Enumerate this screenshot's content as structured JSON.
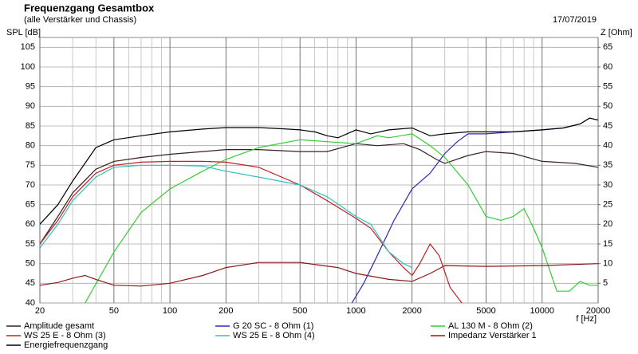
{
  "chart_data": {
    "type": "line",
    "title": "Frequenzgang Gesamtbox",
    "subtitle": "(alle Verstärker und Chassis)",
    "date": "17/07/2019",
    "ylabel": "SPL [dB]",
    "y2label": "Z [Ohm]",
    "xlabel": "f [Hz]",
    "xscale": "log",
    "grid": true,
    "xlim": [
      20,
      20000
    ],
    "xticks": [
      20,
      50,
      100,
      200,
      500,
      1000,
      2000,
      5000,
      10000,
      20000
    ],
    "xminor": [
      30,
      40,
      60,
      70,
      80,
      90,
      300,
      400,
      600,
      700,
      800,
      900,
      3000,
      4000,
      6000,
      7000,
      8000,
      9000
    ],
    "ylim": [
      40,
      107.5
    ],
    "yticks": [
      40,
      45,
      50,
      55,
      60,
      65,
      70,
      75,
      80,
      85,
      90,
      95,
      100,
      105
    ],
    "y2lim": [
      0,
      67.5
    ],
    "y2ticks": [
      5,
      10,
      15,
      20,
      25,
      30,
      35,
      40,
      45,
      50,
      55,
      60,
      65
    ],
    "series": [
      {
        "name": "Amplitude gesamt",
        "color": "#3a2020",
        "x": [
          20,
          25,
          30,
          40,
          50,
          70,
          100,
          150,
          200,
          300,
          500,
          700,
          1000,
          1300,
          1800,
          2200,
          2700,
          3000,
          4000,
          5000,
          7000,
          10000,
          15000,
          20000
        ],
        "values": [
          55,
          62,
          68,
          74,
          76,
          77,
          77.8,
          78.5,
          79,
          79,
          78.5,
          78.5,
          80.5,
          80,
          80.5,
          79,
          76.5,
          75.5,
          77.5,
          78.5,
          78,
          76,
          75.5,
          74.5
        ]
      },
      {
        "name": "G 20 SC - 8 Ohm (1)",
        "color": "#2b2bb0",
        "x": [
          950,
          1100,
          1300,
          1600,
          2000,
          2500,
          3000,
          3500,
          4000,
          5000,
          7000,
          10000,
          13000,
          16000,
          18000,
          20000
        ],
        "values": [
          40,
          45,
          52,
          61,
          69,
          73,
          78,
          81,
          83,
          83,
          83.5,
          84,
          84.5,
          85.5,
          87,
          86.5
        ]
      },
      {
        "name": "AL 130 M - 8 Ohm (2)",
        "color": "#33cc33",
        "x": [
          35,
          50,
          70,
          100,
          150,
          200,
          300,
          500,
          700,
          1000,
          1300,
          1500,
          2000,
          2500,
          3000,
          4000,
          5000,
          6000,
          7000,
          8000,
          9000,
          10000,
          12000,
          14000,
          16000,
          18000,
          20000
        ],
        "values": [
          40,
          53,
          63,
          69,
          73.5,
          76.5,
          79.5,
          81.5,
          81,
          80.5,
          82.5,
          82,
          83,
          80,
          77,
          70,
          62,
          61,
          62,
          64,
          59,
          54,
          43,
          43,
          45.5,
          44.5,
          44.5
        ]
      },
      {
        "name": "WS 25 E - 8 Ohm (3)",
        "color": "#c02020",
        "x": [
          20,
          25,
          30,
          40,
          50,
          70,
          100,
          150,
          200,
          300,
          500,
          700,
          1000,
          1200,
          1500,
          1800,
          2000,
          2200,
          2500,
          2800,
          3200,
          3700
        ],
        "values": [
          55,
          61,
          67,
          73,
          75,
          75.8,
          76,
          76,
          75.8,
          74.5,
          70,
          66,
          61.5,
          59,
          53,
          49,
          47,
          50,
          55,
          52,
          44,
          40
        ]
      },
      {
        "name": "WS 25 E - 8 Ohm (4)",
        "color": "#30c0c0",
        "x": [
          20,
          25,
          30,
          40,
          50,
          70,
          100,
          150,
          200,
          300,
          500,
          700,
          1000,
          1200,
          1500,
          1800,
          2000
        ],
        "values": [
          54,
          60,
          66,
          72,
          74.5,
          75,
          75,
          74.8,
          73.5,
          72,
          70,
          67,
          62,
          60,
          53,
          50,
          49
        ]
      },
      {
        "name": "Impedanz Verstärker 1",
        "color": "#8b1a1a",
        "axis": "y2",
        "x": [
          20,
          25,
          30,
          35,
          40,
          50,
          70,
          100,
          150,
          200,
          300,
          500,
          800,
          1000,
          1500,
          2000,
          2500,
          3000,
          5000,
          10000,
          20000
        ],
        "values": [
          4.5,
          5.2,
          6.3,
          7,
          6,
          4.5,
          4.3,
          5,
          7,
          9,
          10.3,
          10.3,
          9,
          7.5,
          6,
          5.5,
          7.5,
          9.5,
          9.3,
          9.5,
          10
        ]
      },
      {
        "name": "Energiefrequenzgang",
        "color": "#000000",
        "x": [
          20,
          25,
          30,
          40,
          50,
          70,
          100,
          150,
          200,
          300,
          400,
          500,
          600,
          700,
          800,
          1000,
          1200,
          1500,
          2000,
          2500,
          3000,
          4000,
          5000,
          7000,
          10000,
          13000,
          16000,
          18000,
          20000
        ],
        "values": [
          60,
          65,
          71,
          79.5,
          81.5,
          82.5,
          83.5,
          84.2,
          84.6,
          84.6,
          84.3,
          84,
          83.5,
          82.5,
          82,
          84,
          83,
          84,
          84.5,
          82.5,
          83,
          83.5,
          83.5,
          83.5,
          84,
          84.5,
          85.5,
          87,
          86.5
        ]
      }
    ]
  }
}
